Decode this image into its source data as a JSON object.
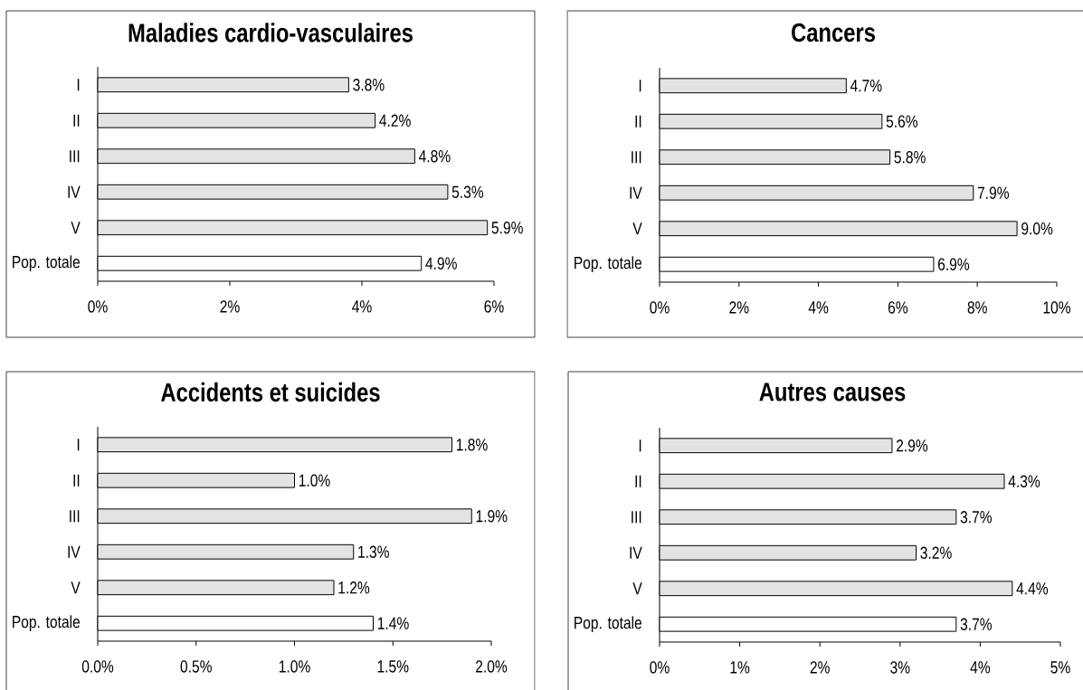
{
  "chart_data": [
    {
      "type": "bar",
      "orientation": "horizontal",
      "title": "Maladies cardio-vasculaires",
      "categories": [
        "I",
        "II",
        "III",
        "IV",
        "V",
        "Pop. totale"
      ],
      "values": [
        3.8,
        4.2,
        4.8,
        5.3,
        5.9,
        4.9
      ],
      "colors": [
        "#e3e3e3",
        "#e3e3e3",
        "#e3e3e3",
        "#e3e3e3",
        "#e3e3e3",
        "#ffffff"
      ],
      "value_labels": [
        "3.8%",
        "4.2%",
        "4.8%",
        "5.3%",
        "5.9%",
        "4.9%"
      ],
      "xlim": [
        0,
        6
      ],
      "xticks": [
        {
          "value": 0,
          "label": "0%"
        },
        {
          "value": 2,
          "label": "2%"
        },
        {
          "value": 4,
          "label": "4%"
        },
        {
          "value": 6,
          "label": "6%"
        }
      ]
    },
    {
      "type": "bar",
      "orientation": "horizontal",
      "title": "Cancers",
      "categories": [
        "I",
        "II",
        "III",
        "IV",
        "V",
        "Pop. totale"
      ],
      "values": [
        4.7,
        5.6,
        5.8,
        7.9,
        9.0,
        6.9
      ],
      "colors": [
        "#e3e3e3",
        "#e3e3e3",
        "#e3e3e3",
        "#e3e3e3",
        "#e3e3e3",
        "#ffffff"
      ],
      "value_labels": [
        "4.7%",
        "5.6%",
        "5.8%",
        "7.9%",
        "9.0%",
        "6.9%"
      ],
      "xlim": [
        0,
        10
      ],
      "xticks": [
        {
          "value": 0,
          "label": "0%"
        },
        {
          "value": 2,
          "label": "2%"
        },
        {
          "value": 4,
          "label": "4%"
        },
        {
          "value": 6,
          "label": "6%"
        },
        {
          "value": 8,
          "label": "8%"
        },
        {
          "value": 10,
          "label": "10%"
        }
      ]
    },
    {
      "type": "bar",
      "orientation": "horizontal",
      "title": "Accidents et suicides",
      "categories": [
        "I",
        "II",
        "III",
        "IV",
        "V",
        "Pop. totale"
      ],
      "values": [
        1.8,
        1.0,
        1.9,
        1.3,
        1.2,
        1.4
      ],
      "colors": [
        "#e3e3e3",
        "#e3e3e3",
        "#e3e3e3",
        "#e3e3e3",
        "#e3e3e3",
        "#ffffff"
      ],
      "value_labels": [
        "1.8%",
        "1.0%",
        "1.9%",
        "1.3%",
        "1.2%",
        "1.4%"
      ],
      "xlim": [
        0,
        2
      ],
      "xticks": [
        {
          "value": 0,
          "label": "0.0%"
        },
        {
          "value": 0.5,
          "label": "0.5%"
        },
        {
          "value": 1,
          "label": "1.0%"
        },
        {
          "value": 1.5,
          "label": "1.5%"
        },
        {
          "value": 2,
          "label": "2.0%"
        }
      ]
    },
    {
      "type": "bar",
      "orientation": "horizontal",
      "title": "Autres causes",
      "categories": [
        "I",
        "II",
        "III",
        "IV",
        "V",
        "Pop. totale"
      ],
      "values": [
        2.9,
        4.3,
        3.7,
        3.2,
        4.4,
        3.7
      ],
      "colors": [
        "#e3e3e3",
        "#e3e3e3",
        "#e3e3e3",
        "#e3e3e3",
        "#e3e3e3",
        "#ffffff"
      ],
      "value_labels": [
        "2.9%",
        "4.3%",
        "3.7%",
        "3.2%",
        "4.4%",
        "3.7%"
      ],
      "xlim": [
        0,
        5
      ],
      "xticks": [
        {
          "value": 0,
          "label": "0%"
        },
        {
          "value": 1,
          "label": "1%"
        },
        {
          "value": 2,
          "label": "2%"
        },
        {
          "value": 3,
          "label": "3%"
        },
        {
          "value": 4,
          "label": "4%"
        },
        {
          "value": 5,
          "label": "5%"
        }
      ]
    }
  ]
}
